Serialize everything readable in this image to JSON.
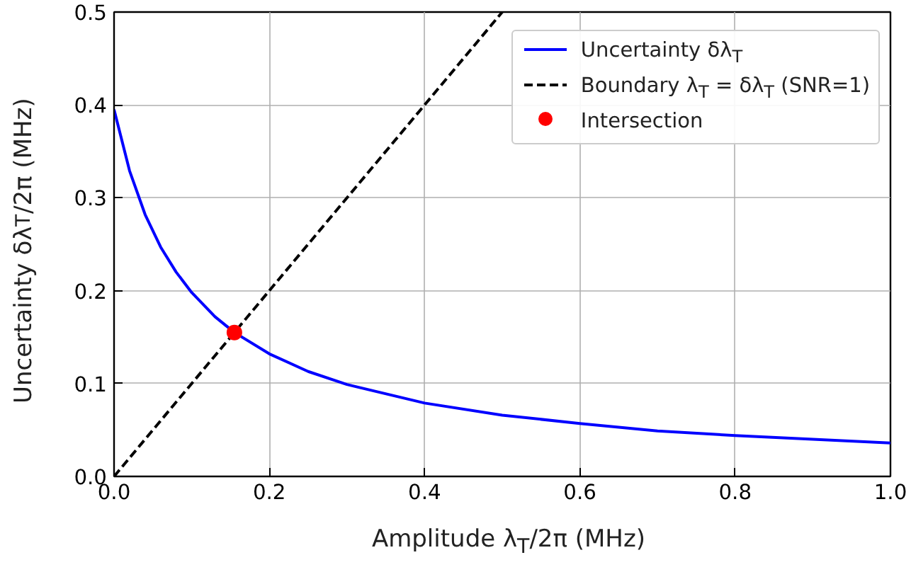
{
  "chart_data": {
    "type": "line",
    "xlabel": "Amplitude λ$_{T}$/2π (MHz)",
    "ylabel": "Uncertainty δλ$_{T}$/2π (MHz)",
    "xlim": [
      0,
      1
    ],
    "ylim": [
      0,
      0.5
    ],
    "xticks": [
      {
        "value": 0,
        "label": "0.0"
      },
      0.2,
      0.4,
      0.6,
      0.8,
      {
        "value": 1,
        "label": "1.0"
      }
    ],
    "yticks": [
      {
        "value": 0,
        "label": "0.0"
      },
      0.1,
      0.2,
      0.3,
      0.4,
      0.5
    ],
    "grid": true,
    "legend": "top right",
    "series": [
      {
        "name": "Uncertainty δλ$_{T}$",
        "type": "line",
        "color": "#0000ff",
        "line_style": "solid",
        "x": [
          0,
          0.02,
          0.04,
          0.06,
          0.08,
          0.1,
          0.13,
          0.155,
          0.2,
          0.25,
          0.3,
          0.4,
          0.5,
          0.6,
          0.7,
          0.8,
          0.9,
          1.0
        ],
        "values": [
          0.395,
          0.329,
          0.282,
          0.247,
          0.22,
          0.198,
          0.172,
          0.155,
          0.132,
          0.113,
          0.099,
          0.079,
          0.066,
          0.057,
          0.049,
          0.044,
          0.04,
          0.036
        ]
      },
      {
        "name": "Boundary λ$_{T}$ = δλ$_{T}$ (SNR=1)",
        "type": "line",
        "color": "#000000",
        "line_style": "dashed",
        "x": [
          0,
          0.5
        ],
        "values": [
          0,
          0.5
        ]
      },
      {
        "name": "Intersection",
        "type": "scatter",
        "color": "#ff0000",
        "marker": "circle",
        "x": [
          0.155
        ],
        "values": [
          0.155
        ]
      }
    ]
  }
}
